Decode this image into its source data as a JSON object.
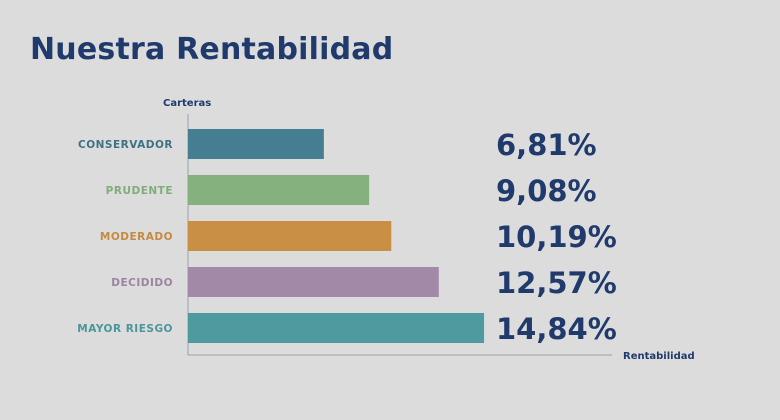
{
  "chart_data": {
    "type": "bar",
    "orientation": "horizontal",
    "title": "Nuestra Rentabilidad",
    "ylabel": "Carteras",
    "xlabel": "Rentabilidad",
    "categories": [
      "CONSERVADOR",
      "PRUDENTE",
      "MODERADO",
      "DECIDIDO",
      "MAYOR RIESGO"
    ],
    "values": [
      6.81,
      9.08,
      10.19,
      12.57,
      14.84
    ],
    "value_labels": [
      "6,81%",
      "9,08%",
      "10,19%",
      "12,57%",
      "14,84%"
    ],
    "colors": [
      "#447e90",
      "#85b17e",
      "#c98f45",
      "#a289a8",
      "#4e9a9f"
    ],
    "label_colors": [
      "#3f7185",
      "#7fae79",
      "#c58a40",
      "#9a84a2",
      "#4a969b"
    ],
    "xlim": [
      0,
      20
    ],
    "grid": false,
    "legend": "none"
  }
}
